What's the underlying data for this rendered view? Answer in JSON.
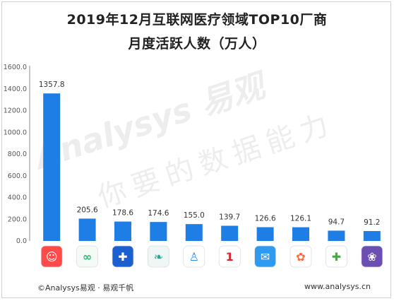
{
  "title_line1": "2019年12月互联网医疗领域TOP10厂商",
  "title_line2": "月度活跃人数（万人）",
  "footer_left": "©Analysys易观 · 易观千帆",
  "footer_right": "www.analysys.cn",
  "watermark_line1": "Analysys 易观",
  "watermark_line2": "你要的数据能力",
  "colors": {
    "bar": "#1f7de6",
    "axis_text": "#555555",
    "label_text": "#333333"
  },
  "chart_data": {
    "type": "bar",
    "categories": [
      "app-1",
      "app-2",
      "app-3",
      "app-4",
      "app-5",
      "app-6",
      "app-7",
      "app-8",
      "app-9",
      "app-10"
    ],
    "category_icons": [
      {
        "name": "chat-app-icon",
        "bg": "#ff4a4a",
        "fg": "#ffffff",
        "glyph": "☺"
      },
      {
        "name": "infinity-app-icon",
        "bg": "#f4faf6",
        "fg": "#2db87a",
        "glyph": "∞"
      },
      {
        "name": "hospital-app-icon",
        "bg": "#1b5fd0",
        "fg": "#ffffff",
        "glyph": "✚"
      },
      {
        "name": "leaf-app-icon",
        "bg": "#eef7f6",
        "fg": "#2aa59a",
        "glyph": "❧"
      },
      {
        "name": "people-app-icon",
        "bg": "#ffffff",
        "fg": "#2d8cf0",
        "glyph": "♙"
      },
      {
        "name": "percent-app-icon",
        "bg": "#ffffff",
        "fg": "#d9282f",
        "glyph": "1"
      },
      {
        "name": "health-app-icon",
        "bg": "#2e9bf0",
        "fg": "#ffffff",
        "glyph": "✉"
      },
      {
        "name": "petal-app-icon",
        "bg": "#ffffff",
        "fg": "#ff6a3d",
        "glyph": "✿"
      },
      {
        "name": "cross-app-icon",
        "bg": "#ffffff",
        "fg": "#3fae3f",
        "glyph": "✚"
      },
      {
        "name": "flower-app-icon",
        "bg": "#6b4fb3",
        "fg": "#ffffff",
        "glyph": "❀"
      }
    ],
    "values": [
      1357.8,
      205.6,
      178.6,
      174.6,
      155.0,
      139.7,
      126.6,
      126.1,
      94.7,
      91.2
    ],
    "value_labels": [
      "1357.8",
      "205.6",
      "178.6",
      "174.6",
      "155.0",
      "139.7",
      "126.6",
      "126.1",
      "94.7",
      "91.2"
    ],
    "yticks": [
      "0.0",
      "200.0",
      "400.0",
      "600.0",
      "800.0",
      "1000.0",
      "1200.0",
      "1400.0",
      "1600.0"
    ],
    "ylim": [
      0,
      1600
    ],
    "grid": false,
    "legend": "none"
  }
}
